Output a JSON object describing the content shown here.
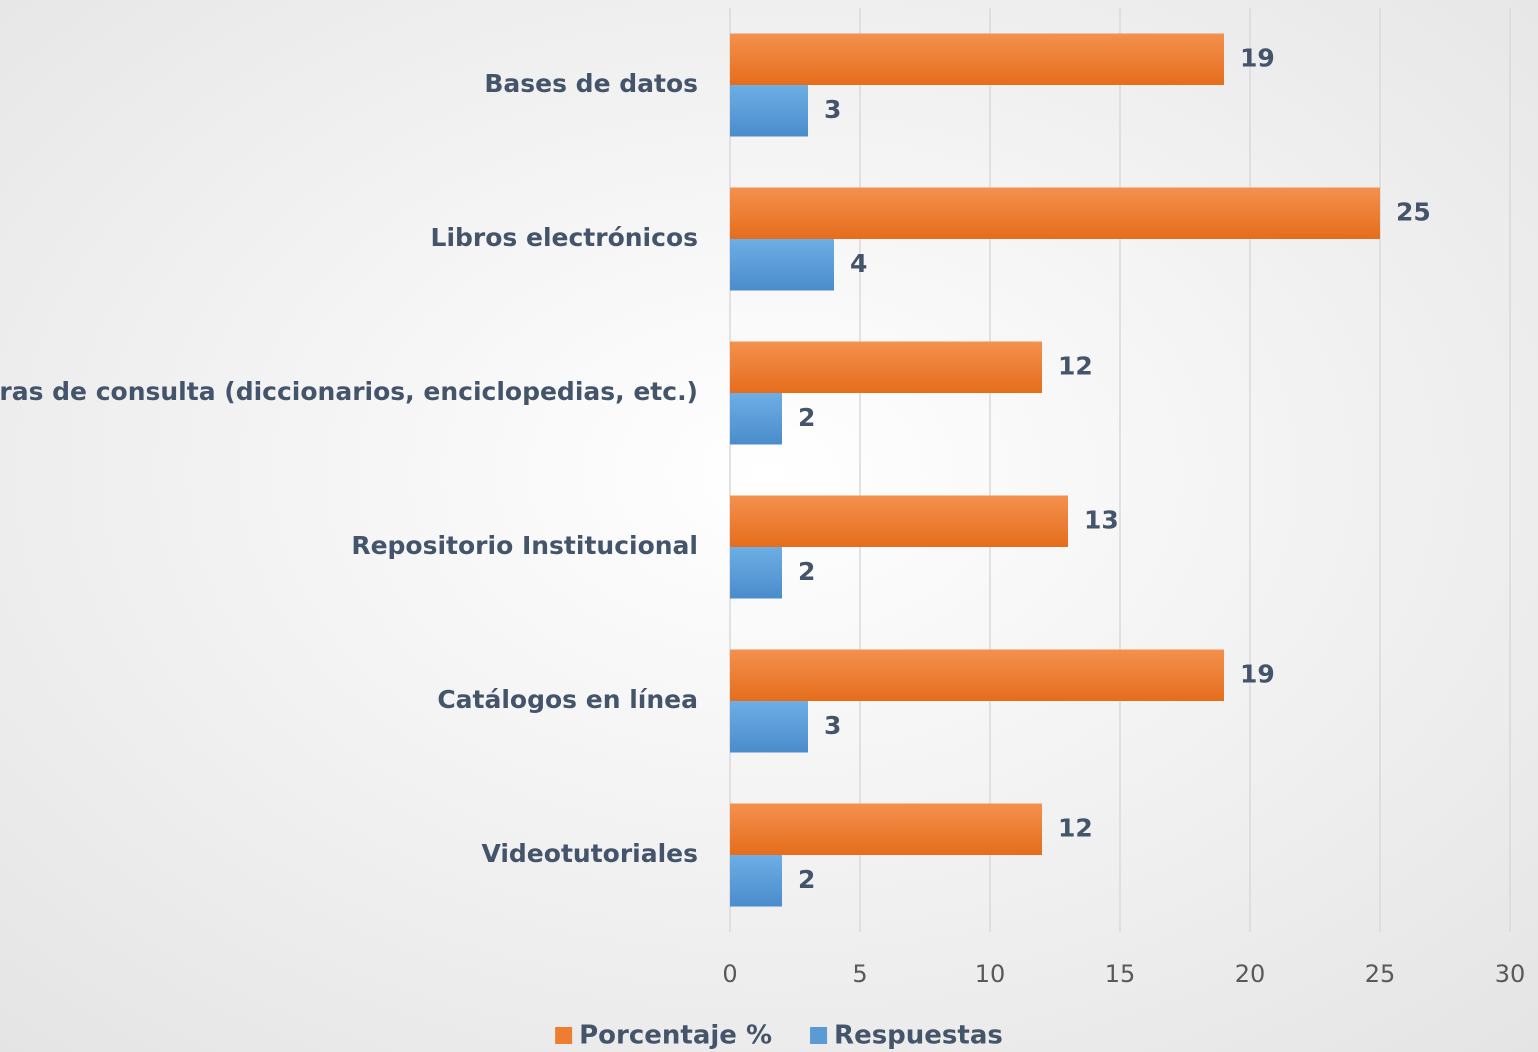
{
  "chart_data": {
    "type": "bar",
    "orientation": "horizontal",
    "categories": [
      "Bases de datos",
      "Libros electrónicos",
      "Obras de consulta (diccionarios, enciclopedias, etc.)",
      "Repositorio Institucional",
      "Catálogos en línea",
      "Videotutoriales"
    ],
    "series": [
      {
        "name": "Porcentaje %",
        "color": "#ed7d31",
        "values": [
          19,
          25,
          12,
          13,
          19,
          12
        ]
      },
      {
        "name": "Respuestas",
        "color": "#5b9bd5",
        "values": [
          3,
          4,
          2,
          2,
          3,
          2
        ]
      }
    ],
    "xlim": [
      0,
      30
    ],
    "xticks": [
      0,
      5,
      10,
      15,
      20,
      25,
      30
    ],
    "grid": true,
    "legend": "bottom"
  }
}
